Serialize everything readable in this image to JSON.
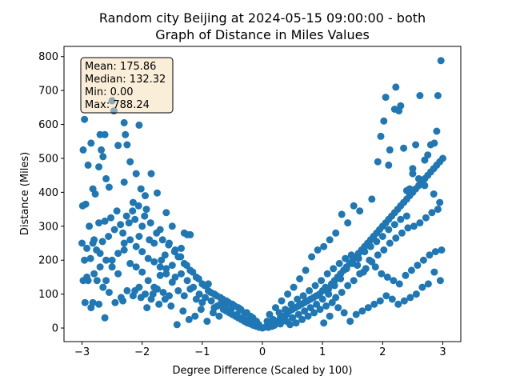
{
  "chart_data": {
    "type": "scatter",
    "title_line1": "Random city Beijing at 2024-05-15 09:00:00  - both",
    "title_line2": "Graph of Distance in Miles Values",
    "xlabel": "Degree Difference (Scaled by 100)",
    "ylabel": "Distance (Miles)",
    "xlim": [
      -3.3,
      3.3
    ],
    "ylim": [
      -40,
      830
    ],
    "xticks": [
      -3,
      -2,
      -1,
      0,
      1,
      2,
      3
    ],
    "yticks": [
      0,
      100,
      200,
      300,
      400,
      500,
      600,
      700,
      800
    ],
    "grid": false,
    "marker_color": "#1f77b4",
    "stats_box": {
      "placement": "top-left",
      "lines": [
        "Mean: 175.86",
        "Median: 132.32",
        "Min: 0.00",
        "Max: 788.24"
      ]
    },
    "points": [
      [
        -2.98,
        525
      ],
      [
        -2.96,
        615
      ],
      [
        -2.85,
        545
      ],
      [
        -2.7,
        570
      ],
      [
        -2.68,
        525
      ],
      [
        -2.65,
        505
      ],
      [
        -2.62,
        570
      ],
      [
        -2.55,
        415
      ],
      [
        -2.5,
        670
      ],
      [
        -2.47,
        640
      ],
      [
        -2.4,
        538
      ],
      [
        -2.3,
        605
      ],
      [
        -2.28,
        570
      ],
      [
        -2.25,
        540
      ],
      [
        -2.2,
        490
      ],
      [
        -2.05,
        598
      ],
      [
        -2.1,
        455
      ],
      [
        -1.85,
        455
      ],
      [
        -1.75,
        398
      ],
      [
        -1.7,
        290
      ],
      [
        -2.72,
        475
      ],
      [
        -2.9,
        480
      ],
      [
        -2.82,
        410
      ],
      [
        -2.78,
        395
      ],
      [
        -2.6,
        440
      ],
      [
        -2.3,
        430
      ],
      [
        -2.15,
        370
      ],
      [
        -2.02,
        410
      ],
      [
        -1.95,
        390
      ],
      [
        -1.93,
        350
      ],
      [
        -1.6,
        340
      ],
      [
        -1.5,
        300
      ],
      [
        -1.3,
        280
      ],
      [
        -1.25,
        275
      ],
      [
        -1.2,
        275
      ],
      [
        -1.35,
        235
      ],
      [
        -1.45,
        230
      ],
      [
        -1.55,
        250
      ],
      [
        -1.62,
        215
      ],
      [
        -1.68,
        200
      ],
      [
        -1.8,
        250
      ],
      [
        -1.88,
        260
      ],
      [
        -2.0,
        300
      ],
      [
        -2.05,
        270
      ],
      [
        -2.12,
        320
      ],
      [
        -2.22,
        310
      ],
      [
        -2.32,
        280
      ],
      [
        -2.42,
        345
      ],
      [
        -2.52,
        325
      ],
      [
        -2.62,
        315
      ],
      [
        -2.72,
        310
      ],
      [
        -2.82,
        250
      ],
      [
        -2.92,
        235
      ],
      [
        -3.0,
        250
      ],
      [
        -2.99,
        360
      ],
      [
        -2.94,
        365
      ],
      [
        -2.88,
        300
      ],
      [
        -2.8,
        260
      ],
      [
        -2.7,
        220
      ],
      [
        -2.6,
        200
      ],
      [
        -2.5,
        180
      ],
      [
        -2.4,
        160
      ],
      [
        -2.3,
        230
      ],
      [
        -2.2,
        190
      ],
      [
        -2.1,
        180
      ],
      [
        -2.0,
        165
      ],
      [
        -1.9,
        140
      ],
      [
        -1.8,
        120
      ],
      [
        -1.7,
        155
      ],
      [
        -1.6,
        175
      ],
      [
        -1.5,
        135
      ],
      [
        -1.4,
        110
      ],
      [
        -1.3,
        95
      ],
      [
        -1.2,
        115
      ],
      [
        -1.1,
        85
      ],
      [
        -1.0,
        75
      ],
      [
        -0.9,
        130
      ],
      [
        -0.8,
        60
      ],
      [
        -0.7,
        70
      ],
      [
        -0.6,
        50
      ],
      [
        -0.5,
        40
      ],
      [
        -0.4,
        30
      ],
      [
        -0.3,
        20
      ],
      [
        -0.2,
        12
      ],
      [
        -0.1,
        5
      ],
      [
        0.0,
        0
      ],
      [
        -0.05,
        2
      ],
      [
        -0.15,
        8
      ],
      [
        -0.25,
        15
      ],
      [
        -0.35,
        25
      ],
      [
        -0.45,
        35
      ],
      [
        -0.55,
        45
      ],
      [
        -0.65,
        55
      ],
      [
        -0.75,
        65
      ],
      [
        -0.85,
        80
      ],
      [
        -0.95,
        90
      ],
      [
        -1.05,
        100
      ],
      [
        -1.15,
        120
      ],
      [
        -1.25,
        140
      ],
      [
        -1.35,
        160
      ],
      [
        -1.45,
        150
      ],
      [
        -1.55,
        95
      ],
      [
        -1.65,
        105
      ],
      [
        -1.75,
        115
      ],
      [
        -1.85,
        85
      ],
      [
        -1.95,
        100
      ],
      [
        -2.05,
        120
      ],
      [
        -2.15,
        95
      ],
      [
        -2.25,
        110
      ],
      [
        -2.35,
        90
      ],
      [
        -2.45,
        75
      ],
      [
        -2.55,
        105
      ],
      [
        -2.65,
        120
      ],
      [
        -2.75,
        140
      ],
      [
        -2.85,
        60
      ],
      [
        -2.95,
        75
      ],
      [
        -2.9,
        140
      ],
      [
        -2.8,
        160
      ],
      [
        -2.7,
        180
      ],
      [
        -2.6,
        140
      ],
      [
        -2.5,
        200
      ],
      [
        -2.4,
        220
      ],
      [
        -2.3,
        250
      ],
      [
        -2.2,
        260
      ],
      [
        -2.1,
        240
      ],
      [
        -2.0,
        225
      ],
      [
        -1.9,
        205
      ],
      [
        -1.8,
        195
      ],
      [
        -1.7,
        180
      ],
      [
        -1.6,
        160
      ],
      [
        -1.5,
        185
      ],
      [
        -1.4,
        210
      ],
      [
        -1.3,
        190
      ],
      [
        -1.2,
        170
      ],
      [
        -1.1,
        150
      ],
      [
        -1.0,
        130
      ],
      [
        -0.9,
        110
      ],
      [
        -0.8,
        100
      ],
      [
        -0.7,
        90
      ],
      [
        -0.6,
        80
      ],
      [
        -0.5,
        70
      ],
      [
        -0.4,
        60
      ],
      [
        -0.3,
        45
      ],
      [
        -0.2,
        35
      ],
      [
        -0.1,
        20
      ],
      [
        -0.12,
        15
      ],
      [
        -0.22,
        25
      ],
      [
        -0.32,
        30
      ],
      [
        -0.42,
        40
      ],
      [
        -0.52,
        55
      ],
      [
        -0.62,
        65
      ],
      [
        -0.72,
        35
      ],
      [
        -0.82,
        45
      ],
      [
        -0.92,
        20
      ],
      [
        -1.02,
        55
      ],
      [
        -1.12,
        35
      ],
      [
        -1.22,
        25
      ],
      [
        -1.32,
        50
      ],
      [
        -1.42,
        10
      ],
      [
        -1.52,
        65
      ],
      [
        -1.62,
        85
      ],
      [
        -1.72,
        70
      ],
      [
        -1.82,
        100
      ],
      [
        -1.92,
        60
      ],
      [
        -2.02,
        90
      ],
      [
        -2.12,
        110
      ],
      [
        -2.32,
        80
      ],
      [
        -2.62,
        30
      ],
      [
        -2.72,
        70
      ],
      [
        -2.82,
        75
      ],
      [
        -2.92,
        150
      ],
      [
        -2.98,
        140
      ],
      [
        -2.96,
        200
      ],
      [
        -2.86,
        205
      ],
      [
        -2.76,
        230
      ],
      [
        -2.66,
        255
      ],
      [
        -2.56,
        270
      ],
      [
        -2.46,
        290
      ],
      [
        -2.36,
        305
      ],
      [
        -2.26,
        330
      ],
      [
        -2.16,
        345
      ],
      [
        -2.06,
        360
      ],
      [
        -1.96,
        330
      ],
      [
        -1.86,
        310
      ],
      [
        -1.76,
        280
      ],
      [
        -1.66,
        260
      ],
      [
        -1.56,
        245
      ],
      [
        -1.46,
        225
      ],
      [
        -1.36,
        210
      ],
      [
        -1.26,
        185
      ],
      [
        -1.16,
        165
      ],
      [
        -1.06,
        145
      ],
      [
        -0.96,
        125
      ],
      [
        -0.86,
        105
      ],
      [
        -0.76,
        95
      ],
      [
        -0.66,
        85
      ],
      [
        -0.56,
        75
      ],
      [
        -0.46,
        65
      ],
      [
        -0.36,
        55
      ],
      [
        -0.26,
        45
      ],
      [
        -0.16,
        30
      ],
      [
        -0.06,
        10
      ],
      [
        0.05,
        3
      ],
      [
        0.1,
        8
      ],
      [
        0.15,
        10
      ],
      [
        0.2,
        15
      ],
      [
        0.25,
        20
      ],
      [
        0.3,
        30
      ],
      [
        0.35,
        35
      ],
      [
        0.4,
        40
      ],
      [
        0.45,
        50
      ],
      [
        0.5,
        55
      ],
      [
        0.55,
        60
      ],
      [
        0.6,
        65
      ],
      [
        0.65,
        70
      ],
      [
        0.7,
        75
      ],
      [
        0.75,
        80
      ],
      [
        0.8,
        85
      ],
      [
        0.85,
        90
      ],
      [
        0.9,
        95
      ],
      [
        0.95,
        100
      ],
      [
        1.0,
        110
      ],
      [
        1.05,
        120
      ],
      [
        1.1,
        115
      ],
      [
        1.15,
        130
      ],
      [
        1.2,
        140
      ],
      [
        1.25,
        150
      ],
      [
        1.3,
        160
      ],
      [
        1.35,
        170
      ],
      [
        1.4,
        180
      ],
      [
        1.45,
        190
      ],
      [
        1.5,
        200
      ],
      [
        1.55,
        210
      ],
      [
        1.6,
        220
      ],
      [
        1.65,
        230
      ],
      [
        1.7,
        240
      ],
      [
        1.75,
        250
      ],
      [
        1.8,
        260
      ],
      [
        1.85,
        270
      ],
      [
        1.9,
        280
      ],
      [
        1.95,
        290
      ],
      [
        2.0,
        300
      ],
      [
        2.05,
        310
      ],
      [
        2.1,
        320
      ],
      [
        2.15,
        330
      ],
      [
        2.2,
        340
      ],
      [
        2.25,
        350
      ],
      [
        2.3,
        360
      ],
      [
        2.35,
        370
      ],
      [
        2.4,
        380
      ],
      [
        2.45,
        390
      ],
      [
        2.5,
        400
      ],
      [
        2.55,
        410
      ],
      [
        2.6,
        420
      ],
      [
        2.65,
        430
      ],
      [
        2.7,
        440
      ],
      [
        2.75,
        450
      ],
      [
        2.8,
        460
      ],
      [
        2.85,
        470
      ],
      [
        2.9,
        480
      ],
      [
        2.95,
        490
      ],
      [
        3.0,
        500
      ],
      [
        2.97,
        788
      ],
      [
        2.92,
        685
      ],
      [
        2.9,
        580
      ],
      [
        2.86,
        545
      ],
      [
        2.8,
        540
      ],
      [
        2.75,
        510
      ],
      [
        2.7,
        495
      ],
      [
        2.62,
        685
      ],
      [
        2.55,
        540
      ],
      [
        2.5,
        470
      ],
      [
        2.45,
        410
      ],
      [
        2.4,
        405
      ],
      [
        2.35,
        530
      ],
      [
        2.3,
        655
      ],
      [
        2.27,
        640
      ],
      [
        2.22,
        710
      ],
      [
        2.2,
        645
      ],
      [
        2.12,
        525
      ],
      [
        2.1,
        480
      ],
      [
        2.05,
        680
      ],
      [
        2.02,
        610
      ],
      [
        1.97,
        565
      ],
      [
        1.92,
        490
      ],
      [
        1.82,
        380
      ],
      [
        1.62,
        345
      ],
      [
        1.52,
        360
      ],
      [
        1.42,
        310
      ],
      [
        1.32,
        335
      ],
      [
        1.22,
        280
      ],
      [
        1.12,
        260
      ],
      [
        1.02,
        240
      ],
      [
        0.92,
        230
      ],
      [
        0.82,
        210
      ],
      [
        0.72,
        170
      ],
      [
        0.62,
        145
      ],
      [
        0.52,
        120
      ],
      [
        0.42,
        100
      ],
      [
        0.32,
        80
      ],
      [
        0.22,
        60
      ],
      [
        0.12,
        40
      ],
      [
        0.08,
        20
      ],
      [
        0.18,
        25
      ],
      [
        0.28,
        45
      ],
      [
        0.38,
        55
      ],
      [
        0.48,
        70
      ],
      [
        0.58,
        85
      ],
      [
        0.68,
        95
      ],
      [
        0.78,
        110
      ],
      [
        0.88,
        125
      ],
      [
        0.98,
        140
      ],
      [
        1.08,
        160
      ],
      [
        1.18,
        175
      ],
      [
        1.28,
        190
      ],
      [
        1.38,
        205
      ],
      [
        1.48,
        215
      ],
      [
        1.58,
        185
      ],
      [
        1.68,
        165
      ],
      [
        1.78,
        200
      ],
      [
        1.88,
        180
      ],
      [
        1.98,
        160
      ],
      [
        2.08,
        150
      ],
      [
        2.18,
        140
      ],
      [
        2.28,
        130
      ],
      [
        2.38,
        155
      ],
      [
        2.48,
        170
      ],
      [
        2.58,
        185
      ],
      [
        2.68,
        200
      ],
      [
        2.78,
        215
      ],
      [
        2.88,
        225
      ],
      [
        2.98,
        230
      ],
      [
        2.96,
        140
      ],
      [
        2.86,
        165
      ],
      [
        2.76,
        130
      ],
      [
        2.66,
        120
      ],
      [
        2.56,
        100
      ],
      [
        2.46,
        90
      ],
      [
        2.36,
        80
      ],
      [
        2.26,
        70
      ],
      [
        2.16,
        85
      ],
      [
        2.06,
        95
      ],
      [
        1.96,
        80
      ],
      [
        1.86,
        70
      ],
      [
        1.76,
        60
      ],
      [
        1.66,
        50
      ],
      [
        1.56,
        40
      ],
      [
        1.46,
        20
      ],
      [
        1.36,
        45
      ],
      [
        1.26,
        60
      ],
      [
        1.16,
        75
      ],
      [
        1.06,
        65
      ],
      [
        0.96,
        55
      ],
      [
        0.86,
        45
      ],
      [
        0.76,
        35
      ],
      [
        0.66,
        25
      ],
      [
        0.56,
        15
      ],
      [
        0.46,
        10
      ],
      [
        0.36,
        30
      ],
      [
        0.26,
        15
      ],
      [
        0.16,
        5
      ],
      [
        1.02,
        15
      ],
      [
        1.12,
        35
      ],
      [
        1.22,
        90
      ],
      [
        1.32,
        105
      ],
      [
        1.42,
        125
      ],
      [
        1.52,
        140
      ],
      [
        1.62,
        160
      ],
      [
        1.72,
        175
      ],
      [
        1.82,
        195
      ],
      [
        1.92,
        215
      ],
      [
        2.02,
        230
      ],
      [
        2.12,
        250
      ],
      [
        2.22,
        265
      ],
      [
        2.32,
        280
      ],
      [
        2.42,
        295
      ],
      [
        2.52,
        300
      ],
      [
        2.62,
        310
      ],
      [
        2.72,
        325
      ],
      [
        2.82,
        340
      ],
      [
        2.92,
        350
      ],
      [
        2.95,
        370
      ],
      [
        2.85,
        395
      ],
      [
        2.7,
        420
      ],
      [
        2.6,
        440
      ],
      [
        2.5,
        455
      ],
      [
        2.4,
        330
      ],
      [
        2.3,
        320
      ],
      [
        2.2,
        305
      ],
      [
        2.1,
        290
      ],
      [
        2.0,
        270
      ],
      [
        1.9,
        255
      ],
      [
        1.8,
        240
      ],
      [
        1.7,
        225
      ],
      [
        1.6,
        205
      ],
      [
        1.5,
        190
      ],
      [
        1.4,
        175
      ],
      [
        1.3,
        145
      ],
      [
        1.2,
        125
      ],
      [
        1.1,
        100
      ],
      [
        1.0,
        85
      ],
      [
        0.9,
        70
      ],
      [
        0.8,
        60
      ],
      [
        0.7,
        50
      ],
      [
        0.6,
        40
      ],
      [
        0.5,
        30
      ],
      [
        0.4,
        20
      ],
      [
        0.3,
        12
      ],
      [
        0.2,
        8
      ],
      [
        0.1,
        2
      ]
    ]
  }
}
